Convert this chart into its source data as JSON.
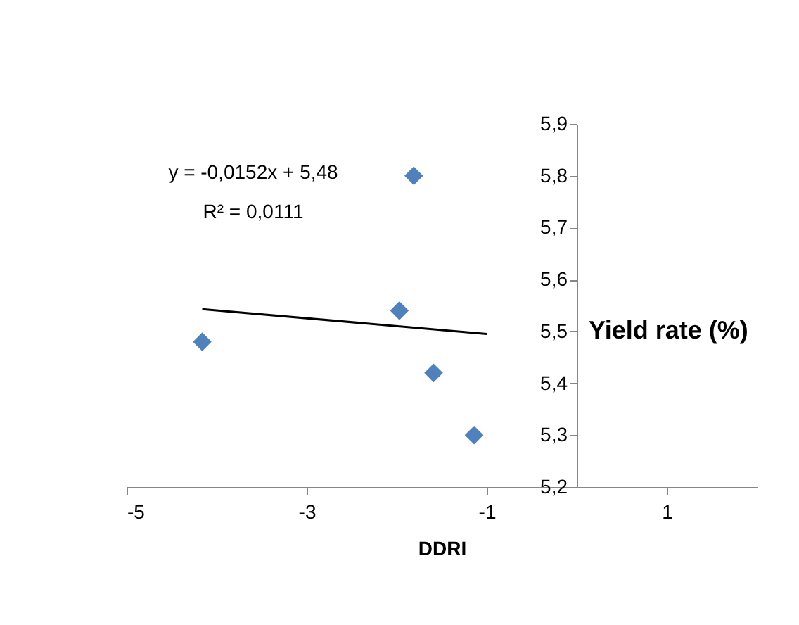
{
  "chart_data": {
    "type": "scatter",
    "xlabel": "DDRI",
    "ylabel": "Yield rate (%)",
    "annotations": [
      "y = -0,0152x + 5,48",
      "R² = 0,0111"
    ],
    "xlim": [
      -5,
      2
    ],
    "xticks": [
      -5,
      -3,
      -1,
      1
    ],
    "ylim": [
      5.2,
      5.9
    ],
    "yticks": [
      {
        "value": 5.2,
        "label": "5,2"
      },
      {
        "value": 5.3,
        "label": "5,3"
      },
      {
        "value": 5.4,
        "label": "5,4"
      },
      {
        "value": 5.5,
        "label": "5,5"
      },
      {
        "value": 5.6,
        "label": "5,6"
      },
      {
        "value": 5.7,
        "label": "5,7"
      },
      {
        "value": 5.8,
        "label": "5,8"
      },
      {
        "value": 5.9,
        "label": "5,9"
      }
    ],
    "marker": "diamond",
    "series": [
      {
        "color": "#4f81bd",
        "x": [
          -4.16,
          -1.97,
          -1.81,
          -1.59,
          -1.14
        ],
        "values": [
          5.48,
          5.54,
          5.8,
          5.42,
          5.3
        ]
      },
      {
        "type": "line",
        "color": "#000000",
        "marker": "none",
        "x": [
          -4.16,
          -1
        ],
        "values": [
          5.543,
          5.495
        ]
      }
    ]
  }
}
